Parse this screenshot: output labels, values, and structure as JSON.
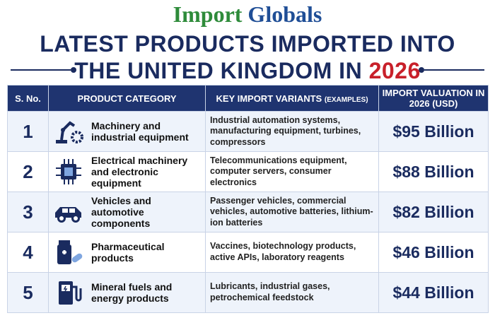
{
  "logo": {
    "word1": "Import",
    "word2": "Globals"
  },
  "title": {
    "line1": "LATEST PRODUCTS IMPORTED INTO",
    "line2": "THE UNITED KINGDOM IN",
    "year": "2026"
  },
  "table": {
    "headers": {
      "sno": "S. No.",
      "category": "PRODUCT CATEGORY",
      "variants": "KEY IMPORT VARIANTS",
      "variants_note": "(EXAMPLES)",
      "valuation": "IMPORT VALUATION IN 2026 (USD)"
    },
    "rows": [
      [
        "1",
        "Machinery and industrial equipment",
        "Industrial automation systems, manufacturing equipment, turbines, compressors",
        "$95 Billion"
      ],
      [
        "2",
        "Electrical machinery and electronic equipment",
        "Telecommunications equipment, computer servers, consumer electronics",
        "$88 Billion"
      ],
      [
        "3",
        "Vehicles and automotive components",
        "Passenger vehicles, commercial vehicles, automotive batteries, lithium-ion batteries",
        "$82 Billion"
      ],
      [
        "4",
        "Pharmaceutical products",
        "Vaccines, biotechnology products, active APIs, laboratory reagents",
        "$46 Billion"
      ],
      [
        "5",
        "Mineral fuels and energy products",
        "Lubricants, industrial gases, petrochemical feedstock",
        "$44 Billion"
      ]
    ]
  }
}
